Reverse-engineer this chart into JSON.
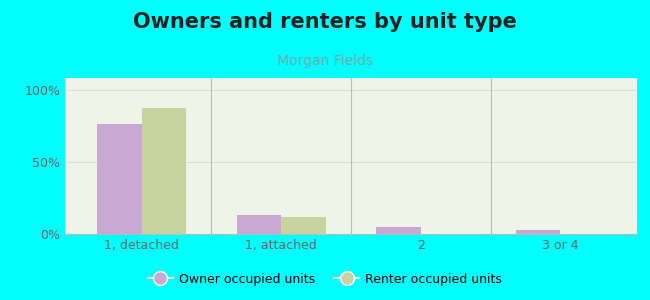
{
  "title": "Owners and renters by unit type",
  "subtitle": "Morgan Fields",
  "categories": [
    "1, detached",
    "1, attached",
    "2",
    "3 or 4"
  ],
  "owner_values": [
    76,
    13,
    5,
    3
  ],
  "renter_values": [
    87,
    12,
    0,
    0
  ],
  "owner_color": "#c9a8d4",
  "renter_color": "#c8d4a0",
  "background_color": "#00ffff",
  "plot_bg": "#eef5e8",
  "title_color": "#222222",
  "subtitle_color": "#6aacac",
  "tick_color": "#666666",
  "grid_color": "#dddddd",
  "divider_color": "#bbbbbb",
  "yticks": [
    0,
    50,
    100
  ],
  "ytick_labels": [
    "0%",
    "50%",
    "100%"
  ],
  "legend_owner": "Owner occupied units",
  "legend_renter": "Renter occupied units",
  "bar_width": 0.32,
  "title_fontsize": 15,
  "subtitle_fontsize": 10,
  "tick_fontsize": 9,
  "legend_fontsize": 9
}
